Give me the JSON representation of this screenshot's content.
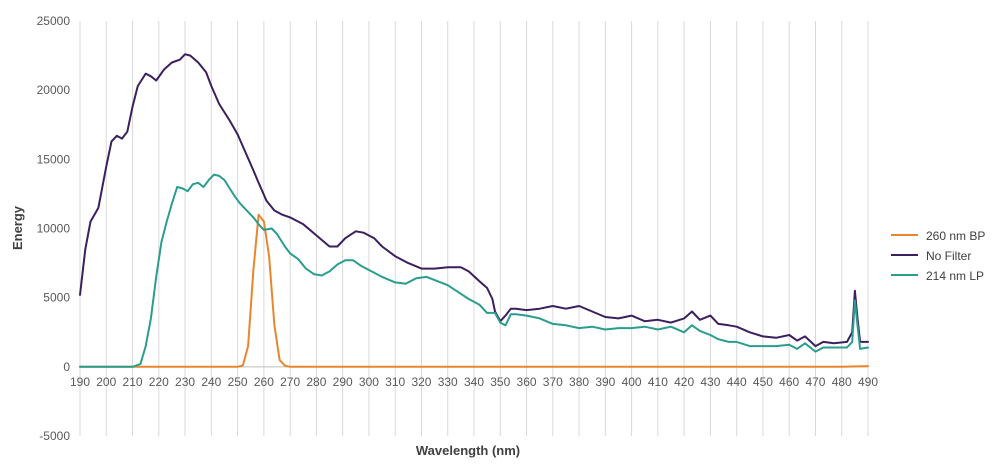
{
  "chart_data": {
    "type": "line",
    "xlabel": "Wavelength (nm)",
    "ylabel": "Energy",
    "xlim": [
      190,
      490
    ],
    "ylim": [
      -5000,
      25000
    ],
    "x_ticks": [
      190,
      200,
      210,
      220,
      230,
      240,
      250,
      260,
      270,
      280,
      290,
      300,
      310,
      320,
      330,
      340,
      350,
      360,
      370,
      380,
      390,
      400,
      410,
      420,
      430,
      440,
      450,
      460,
      470,
      480,
      490
    ],
    "y_ticks": [
      -5000,
      0,
      5000,
      10000,
      15000,
      20000,
      25000
    ],
    "grid": "vertical",
    "legend_position": "right",
    "series": [
      {
        "name": "260 nm BP",
        "color": "#e8862e",
        "points": [
          [
            190,
            0
          ],
          [
            240,
            0
          ],
          [
            250,
            0
          ],
          [
            252,
            100
          ],
          [
            254,
            1500
          ],
          [
            256,
            7000
          ],
          [
            258,
            11000
          ],
          [
            260,
            10500
          ],
          [
            262,
            8000
          ],
          [
            264,
            3000
          ],
          [
            266,
            500
          ],
          [
            268,
            80
          ],
          [
            270,
            0
          ],
          [
            300,
            0
          ],
          [
            350,
            0
          ],
          [
            400,
            0
          ],
          [
            450,
            0
          ],
          [
            480,
            0
          ],
          [
            490,
            50
          ]
        ]
      },
      {
        "name": "No Filter",
        "color": "#3b1f5e",
        "points": [
          [
            190,
            5200
          ],
          [
            192,
            8500
          ],
          [
            194,
            10500
          ],
          [
            197,
            11500
          ],
          [
            200,
            14500
          ],
          [
            202,
            16300
          ],
          [
            204,
            16700
          ],
          [
            206,
            16500
          ],
          [
            208,
            17000
          ],
          [
            210,
            18800
          ],
          [
            212,
            20300
          ],
          [
            215,
            21200
          ],
          [
            217,
            21000
          ],
          [
            219,
            20700
          ],
          [
            222,
            21500
          ],
          [
            225,
            22000
          ],
          [
            228,
            22200
          ],
          [
            230,
            22600
          ],
          [
            232,
            22500
          ],
          [
            235,
            22000
          ],
          [
            238,
            21300
          ],
          [
            240,
            20300
          ],
          [
            243,
            19000
          ],
          [
            247,
            17800
          ],
          [
            250,
            16800
          ],
          [
            253,
            15500
          ],
          [
            256,
            14200
          ],
          [
            258,
            13300
          ],
          [
            261,
            12000
          ],
          [
            264,
            11300
          ],
          [
            267,
            11000
          ],
          [
            270,
            10800
          ],
          [
            275,
            10300
          ],
          [
            280,
            9500
          ],
          [
            285,
            8700
          ],
          [
            288,
            8700
          ],
          [
            291,
            9300
          ],
          [
            295,
            9800
          ],
          [
            298,
            9700
          ],
          [
            302,
            9300
          ],
          [
            305,
            8700
          ],
          [
            310,
            8000
          ],
          [
            315,
            7500
          ],
          [
            320,
            7100
          ],
          [
            325,
            7100
          ],
          [
            330,
            7200
          ],
          [
            335,
            7200
          ],
          [
            338,
            6900
          ],
          [
            342,
            6200
          ],
          [
            345,
            5700
          ],
          [
            347,
            4900
          ],
          [
            348,
            4000
          ],
          [
            350,
            3300
          ],
          [
            352,
            3700
          ],
          [
            354,
            4200
          ],
          [
            356,
            4200
          ],
          [
            360,
            4100
          ],
          [
            365,
            4200
          ],
          [
            370,
            4400
          ],
          [
            375,
            4200
          ],
          [
            380,
            4400
          ],
          [
            385,
            4000
          ],
          [
            390,
            3600
          ],
          [
            395,
            3500
          ],
          [
            400,
            3700
          ],
          [
            405,
            3300
          ],
          [
            410,
            3400
          ],
          [
            415,
            3200
          ],
          [
            420,
            3500
          ],
          [
            423,
            4000
          ],
          [
            426,
            3400
          ],
          [
            430,
            3700
          ],
          [
            433,
            3100
          ],
          [
            437,
            3000
          ],
          [
            440,
            2900
          ],
          [
            445,
            2500
          ],
          [
            450,
            2200
          ],
          [
            455,
            2100
          ],
          [
            460,
            2300
          ],
          [
            463,
            1900
          ],
          [
            466,
            2200
          ],
          [
            470,
            1500
          ],
          [
            473,
            1800
          ],
          [
            477,
            1700
          ],
          [
            482,
            1800
          ],
          [
            484,
            2500
          ],
          [
            485,
            5500
          ],
          [
            486,
            3500
          ],
          [
            487,
            1800
          ],
          [
            490,
            1800
          ]
        ]
      },
      {
        "name": "214 nm LP",
        "color": "#2a9d8f",
        "points": [
          [
            190,
            0
          ],
          [
            200,
            0
          ],
          [
            210,
            0
          ],
          [
            213,
            200
          ],
          [
            215,
            1500
          ],
          [
            217,
            3500
          ],
          [
            219,
            6500
          ],
          [
            221,
            9000
          ],
          [
            223,
            10500
          ],
          [
            225,
            11800
          ],
          [
            227,
            13000
          ],
          [
            229,
            12900
          ],
          [
            231,
            12700
          ],
          [
            233,
            13200
          ],
          [
            235,
            13300
          ],
          [
            237,
            13000
          ],
          [
            239,
            13500
          ],
          [
            241,
            13900
          ],
          [
            243,
            13800
          ],
          [
            245,
            13500
          ],
          [
            247,
            12900
          ],
          [
            249,
            12300
          ],
          [
            251,
            11800
          ],
          [
            254,
            11200
          ],
          [
            256,
            10800
          ],
          [
            258,
            10300
          ],
          [
            260,
            9900
          ],
          [
            263,
            10000
          ],
          [
            265,
            9600
          ],
          [
            268,
            8700
          ],
          [
            270,
            8200
          ],
          [
            273,
            7800
          ],
          [
            276,
            7100
          ],
          [
            279,
            6700
          ],
          [
            282,
            6600
          ],
          [
            285,
            6900
          ],
          [
            288,
            7400
          ],
          [
            291,
            7700
          ],
          [
            294,
            7700
          ],
          [
            297,
            7300
          ],
          [
            301,
            6900
          ],
          [
            305,
            6500
          ],
          [
            310,
            6100
          ],
          [
            314,
            6000
          ],
          [
            318,
            6400
          ],
          [
            322,
            6500
          ],
          [
            326,
            6200
          ],
          [
            330,
            5900
          ],
          [
            334,
            5400
          ],
          [
            338,
            4900
          ],
          [
            342,
            4500
          ],
          [
            345,
            3900
          ],
          [
            348,
            3900
          ],
          [
            350,
            3200
          ],
          [
            352,
            3000
          ],
          [
            354,
            3800
          ],
          [
            356,
            3800
          ],
          [
            360,
            3700
          ],
          [
            365,
            3500
          ],
          [
            370,
            3100
          ],
          [
            375,
            3000
          ],
          [
            380,
            2800
          ],
          [
            385,
            2900
          ],
          [
            390,
            2700
          ],
          [
            395,
            2800
          ],
          [
            400,
            2800
          ],
          [
            405,
            2900
          ],
          [
            410,
            2700
          ],
          [
            415,
            2900
          ],
          [
            420,
            2500
          ],
          [
            423,
            3000
          ],
          [
            426,
            2600
          ],
          [
            430,
            2300
          ],
          [
            433,
            2000
          ],
          [
            437,
            1800
          ],
          [
            440,
            1800
          ],
          [
            445,
            1500
          ],
          [
            450,
            1500
          ],
          [
            455,
            1500
          ],
          [
            460,
            1600
          ],
          [
            463,
            1300
          ],
          [
            466,
            1700
          ],
          [
            470,
            1100
          ],
          [
            473,
            1400
          ],
          [
            477,
            1400
          ],
          [
            482,
            1400
          ],
          [
            484,
            1800
          ],
          [
            485,
            4800
          ],
          [
            486,
            3000
          ],
          [
            487,
            1300
          ],
          [
            490,
            1400
          ]
        ]
      }
    ]
  }
}
